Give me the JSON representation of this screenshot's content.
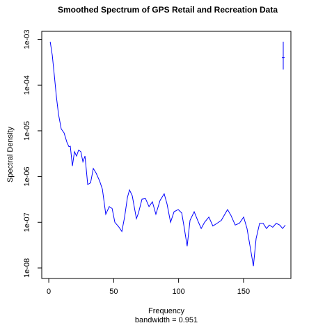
{
  "chart_data": {
    "type": "line",
    "title": "Smoothed Spectrum of GPS Retail and Recreation Data",
    "xlabel": "Frequency",
    "subtitle": "bandwidth = 0.951",
    "ylabel": "Spectral Density",
    "log_y": true,
    "color": "#0000ff",
    "xlim": [
      -5.4,
      186.5
    ],
    "ylim": [
      0.0015,
      5.9e-09
    ],
    "xticks": [
      0,
      50,
      100,
      150
    ],
    "yticks": [
      {
        "value": 0.001,
        "label": "1e-03"
      },
      {
        "value": 0.0001,
        "label": "1e-04"
      },
      {
        "value": 1e-05,
        "label": "1e-05"
      },
      {
        "value": 1e-06,
        "label": "1e-06"
      },
      {
        "value": 1e-07,
        "label": "1e-07"
      },
      {
        "value": 1e-08,
        "label": "1e-08"
      }
    ],
    "x": [
      1.1,
      2.7,
      4.3,
      5.9,
      7.5,
      9.6,
      11.8,
      13.9,
      15.5,
      16.6,
      18.2,
      19.8,
      21.4,
      23.0,
      24.7,
      26.3,
      27.9,
      30.0,
      32.2,
      34.3,
      36.4,
      39.1,
      41.3,
      43.9,
      46.6,
      48.8,
      50.9,
      54.1,
      56.3,
      58.4,
      60.6,
      62.2,
      64.3,
      67.5,
      69.1,
      71.8,
      74.5,
      77.2,
      79.8,
      82.5,
      85.7,
      88.9,
      91.1,
      93.8,
      96.5,
      99.7,
      102.4,
      104.0,
      106.6,
      108.8,
      112.0,
      114.7,
      117.4,
      120.0,
      123.3,
      126.4,
      129.6,
      132.9,
      135.6,
      137.7,
      140.4,
      143.6,
      146.8,
      150.1,
      152.7,
      155.4,
      157.6,
      159.7,
      162.4,
      165.1,
      167.7,
      169.9,
      172.5,
      175.2,
      177.9,
      180.1,
      182.2
    ],
    "values": [
      0.00089,
      0.00045,
      0.00016,
      5.5e-05,
      2.3e-05,
      1.1e-05,
      9e-06,
      5.7e-06,
      4.5e-06,
      4.6e-06,
      1.7e-06,
      3.5e-06,
      2.8e-06,
      3.8e-06,
      3.5e-06,
      2.1e-06,
      2.8e-06,
      6.7e-07,
      7.3e-07,
      1.5e-06,
      1.2e-06,
      8.1e-07,
      5.3e-07,
      1.5e-07,
      2.2e-07,
      2e-07,
      1e-07,
      7.8e-08,
      6.3e-08,
      1.3e-07,
      3.5e-07,
      5.1e-07,
      3.8e-07,
      1.2e-07,
      1.6e-07,
      3.2e-07,
      3.3e-07,
      2.2e-07,
      2.8e-07,
      1.5e-07,
      3e-07,
      4.2e-07,
      2.5e-07,
      1e-07,
      1.7e-07,
      1.9e-07,
      1.6e-07,
      8.7e-08,
      3e-08,
      1.1e-07,
      1.7e-07,
      1.1e-07,
      7.3e-08,
      1e-07,
      1.3e-07,
      8.3e-08,
      9.5e-08,
      1.1e-07,
      1.5e-07,
      1.9e-07,
      1.4e-07,
      8.7e-08,
      9.5e-08,
      1.3e-07,
      7.3e-08,
      2.6e-08,
      1.1e-08,
      4.4e-08,
      9.5e-08,
      9.5e-08,
      7.3e-08,
      8.7e-08,
      7.8e-08,
      9.5e-08,
      8.7e-08,
      7.3e-08,
      8.7e-08
    ],
    "ci": {
      "x": 180.6,
      "lower": 0.00022,
      "center": 0.0004,
      "upper": 0.00089
    }
  }
}
